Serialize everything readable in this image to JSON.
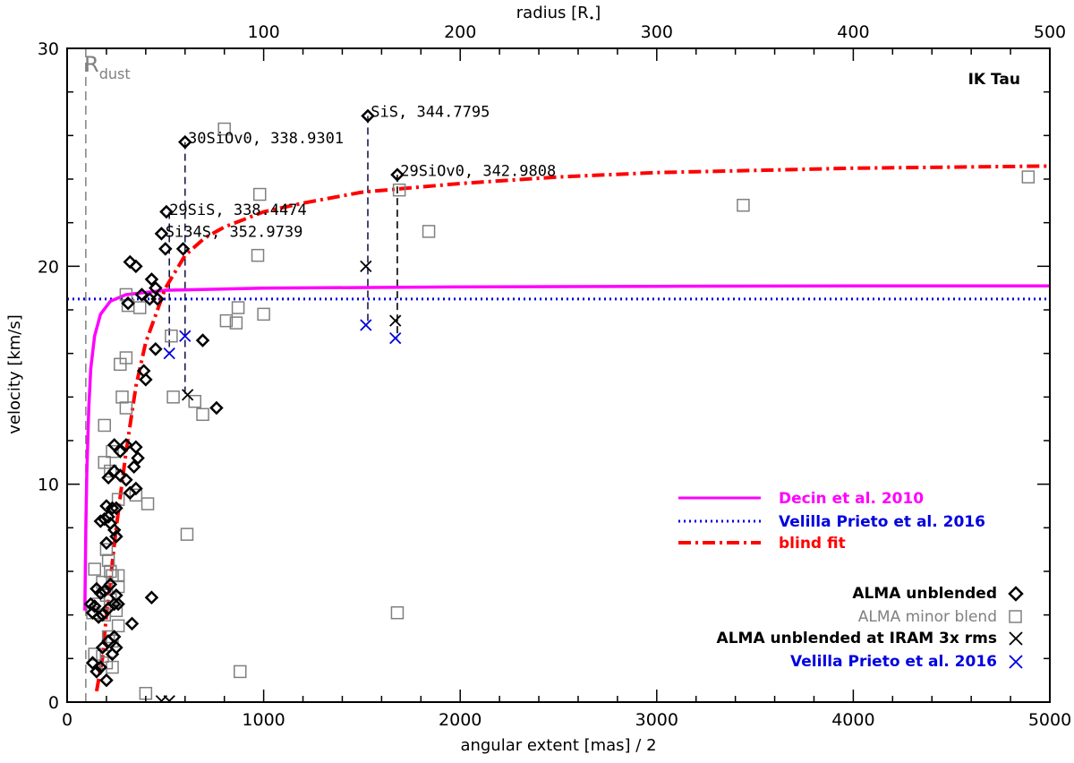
{
  "chart_data": {
    "type": "scatter",
    "title": "IK Tau",
    "xlabel": "angular extent [mas] / 2",
    "ylabel": "velocity [km/s]",
    "x2label": "radius [R",
    "x2label_suffix": "]",
    "xlim": [
      0,
      5000
    ],
    "ylim": [
      0,
      30
    ],
    "x2lim": [
      0,
      500
    ],
    "xticks": [
      "0",
      "1000",
      "2000",
      "3000",
      "4000",
      "5000"
    ],
    "yticks": [
      "0",
      "10",
      "20",
      "30"
    ],
    "x2ticks": [
      "100",
      "200",
      "300",
      "400",
      "500"
    ],
    "rdust_label": "R",
    "rdust_sub": "dust",
    "rdust_x": 95,
    "grid": false,
    "legend_position": "right",
    "colors": {
      "decin": "#ff00ff",
      "velilla": "#0000e0",
      "blind": "#ff0000",
      "unblended": "#000000",
      "minor_blend": "#808080",
      "iram": "#000000",
      "velilla_points": "#0000e0"
    },
    "lines": [
      {
        "name": "Decin et al. 2010",
        "style": "solid",
        "color": "#ff00ff"
      },
      {
        "name": "Velilla Prieto et al. 2016",
        "style": "dotted",
        "color": "#0000e0",
        "value": 18.5
      },
      {
        "name": "blind fit",
        "style": "dashdot",
        "color": "#ff0000"
      }
    ],
    "point_legend": [
      {
        "name": "ALMA unblended",
        "marker": "diamond",
        "color": "#000000"
      },
      {
        "name": "ALMA minor blend",
        "marker": "square",
        "color": "#808080"
      },
      {
        "name": "ALMA unblended at IRAM 3x rms",
        "marker": "x",
        "color": "#000000"
      },
      {
        "name": "Velilla Prieto et al. 2016",
        "marker": "x",
        "color": "#0000e0"
      }
    ],
    "decin_curve": [
      [
        90,
        4.2
      ],
      [
        95,
        8
      ],
      [
        100,
        10.5
      ],
      [
        110,
        13.5
      ],
      [
        120,
        15.3
      ],
      [
        140,
        16.8
      ],
      [
        170,
        17.8
      ],
      [
        220,
        18.4
      ],
      [
        300,
        18.7
      ],
      [
        500,
        18.9
      ],
      [
        1000,
        19.0
      ],
      [
        2000,
        19.05
      ],
      [
        3000,
        19.08
      ],
      [
        4000,
        19.1
      ],
      [
        5000,
        19.1
      ]
    ],
    "blind_curve": [
      [
        150,
        0.5
      ],
      [
        180,
        2
      ],
      [
        200,
        4
      ],
      [
        250,
        8
      ],
      [
        300,
        11.5
      ],
      [
        350,
        14.5
      ],
      [
        400,
        16.5
      ],
      [
        500,
        19
      ],
      [
        600,
        20.5
      ],
      [
        700,
        21.3
      ],
      [
        800,
        21.8
      ],
      [
        1000,
        22.5
      ],
      [
        1200,
        22.9
      ],
      [
        1500,
        23.4
      ],
      [
        2000,
        23.8
      ],
      [
        2500,
        24.1
      ],
      [
        3000,
        24.3
      ],
      [
        3500,
        24.4
      ],
      [
        4000,
        24.5
      ],
      [
        4500,
        24.55
      ],
      [
        5000,
        24.6
      ]
    ],
    "unblended": [
      [
        505,
        22.5
      ],
      [
        480,
        21.5
      ],
      [
        500,
        20.8
      ],
      [
        590,
        20.8
      ],
      [
        380,
        18.7
      ],
      [
        450,
        19.0
      ],
      [
        430,
        19.4
      ],
      [
        320,
        20.2
      ],
      [
        350,
        20.0
      ],
      [
        310,
        18.3
      ],
      [
        420,
        18.5
      ],
      [
        460,
        18.5
      ],
      [
        600,
        25.7
      ],
      [
        1530,
        26.9
      ],
      [
        1680,
        24.2
      ],
      [
        690,
        16.6
      ],
      [
        450,
        16.2
      ],
      [
        390,
        15.2
      ],
      [
        400,
        14.8
      ],
      [
        760,
        13.5
      ],
      [
        300,
        11.8
      ],
      [
        240,
        11.8
      ],
      [
        270,
        11.5
      ],
      [
        350,
        11.7
      ],
      [
        360,
        11.2
      ],
      [
        340,
        10.8
      ],
      [
        210,
        10.3
      ],
      [
        240,
        10.6
      ],
      [
        270,
        10.4
      ],
      [
        300,
        10.2
      ],
      [
        350,
        9.8
      ],
      [
        320,
        9.6
      ],
      [
        200,
        9.0
      ],
      [
        230,
        8.9
      ],
      [
        250,
        8.9
      ],
      [
        210,
        8.5
      ],
      [
        170,
        8.3
      ],
      [
        190,
        8.4
      ],
      [
        220,
        8.2
      ],
      [
        240,
        7.9
      ],
      [
        250,
        7.6
      ],
      [
        200,
        7.3
      ],
      [
        150,
        5.2
      ],
      [
        170,
        5.0
      ],
      [
        190,
        5.1
      ],
      [
        220,
        5.4
      ],
      [
        250,
        4.9
      ],
      [
        240,
        4.5
      ],
      [
        430,
        4.8
      ],
      [
        120,
        4.5
      ],
      [
        130,
        4.1
      ],
      [
        140,
        4.4
      ],
      [
        160,
        3.9
      ],
      [
        180,
        4.0
      ],
      [
        210,
        4.3
      ],
      [
        260,
        4.5
      ],
      [
        330,
        3.6
      ],
      [
        130,
        1.8
      ],
      [
        150,
        1.4
      ],
      [
        170,
        1.6
      ],
      [
        200,
        1.0
      ],
      [
        230,
        2.2
      ],
      [
        250,
        2.5
      ],
      [
        210,
        2.8
      ],
      [
        240,
        3.0
      ],
      [
        180,
        2.5
      ]
    ],
    "minor_blend": [
      [
        800,
        26.3
      ],
      [
        980,
        23.3
      ],
      [
        1690,
        23.5
      ],
      [
        1840,
        21.6
      ],
      [
        3440,
        22.8
      ],
      [
        4890,
        24.1
      ],
      [
        970,
        20.5
      ],
      [
        300,
        18.7
      ],
      [
        310,
        18.2
      ],
      [
        370,
        18.1
      ],
      [
        530,
        16.8
      ],
      [
        810,
        17.5
      ],
      [
        860,
        17.4
      ],
      [
        870,
        18.1
      ],
      [
        1000,
        17.8
      ],
      [
        270,
        15.5
      ],
      [
        300,
        15.8
      ],
      [
        540,
        14.0
      ],
      [
        650,
        13.8
      ],
      [
        690,
        13.2
      ],
      [
        280,
        14.0
      ],
      [
        300,
        13.5
      ],
      [
        190,
        12.7
      ],
      [
        190,
        11.0
      ],
      [
        230,
        11.5
      ],
      [
        220,
        10.6
      ],
      [
        260,
        9.3
      ],
      [
        350,
        9.5
      ],
      [
        410,
        9.1
      ],
      [
        610,
        7.7
      ],
      [
        200,
        7.0
      ],
      [
        210,
        6.5
      ],
      [
        220,
        6.0
      ],
      [
        140,
        6.1
      ],
      [
        180,
        5.5
      ],
      [
        230,
        5.8
      ],
      [
        260,
        5.8
      ],
      [
        260,
        5.3
      ],
      [
        200,
        4.9
      ],
      [
        220,
        4.7
      ],
      [
        250,
        4.2
      ],
      [
        130,
        4.1
      ],
      [
        160,
        4.5
      ],
      [
        190,
        4.0
      ],
      [
        260,
        3.5
      ],
      [
        210,
        3.0
      ],
      [
        230,
        2.8
      ],
      [
        140,
        2.2
      ],
      [
        180,
        2.1
      ],
      [
        200,
        1.8
      ],
      [
        230,
        1.6
      ],
      [
        1680,
        4.1
      ],
      [
        880,
        1.4
      ],
      [
        400,
        0.4
      ]
    ],
    "iram": [
      [
        613,
        14.1
      ],
      [
        1520,
        20.0
      ],
      [
        1670,
        17.5
      ],
      [
        480,
        0.05
      ],
      [
        520,
        0.05
      ]
    ],
    "velilla_points": [
      [
        520,
        16.0
      ],
      [
        600,
        16.8
      ],
      [
        1520,
        17.3
      ],
      [
        1670,
        16.7
      ]
    ],
    "dropdowns": [
      {
        "x": 600,
        "y_top": 25.7,
        "y_bottom": 14.1,
        "color": "#1a1a4d"
      },
      {
        "x": 1530,
        "y_top": 26.9,
        "y_bottom": 17.3,
        "color": "#1a1a4d"
      },
      {
        "x": 1680,
        "y_top": 24.2,
        "y_bottom": 16.7,
        "color": "#000000"
      },
      {
        "x": 520,
        "y_top": 22.5,
        "y_bottom": 16.0,
        "color": "#1a1a4d"
      }
    ],
    "annotations": [
      {
        "text": "30SiOv0, 338.9301",
        "x": 615,
        "y": 25.9
      },
      {
        "text": "SiS, 344.7795",
        "x": 1545,
        "y": 27.1
      },
      {
        "text": "29SiOv0, 342.9808",
        "x": 1695,
        "y": 24.4
      },
      {
        "text": "29SiS, 338.4474",
        "x": 520,
        "y": 22.6
      },
      {
        "text": "Si34S, 352.9739",
        "x": 500,
        "y": 21.6
      }
    ]
  }
}
